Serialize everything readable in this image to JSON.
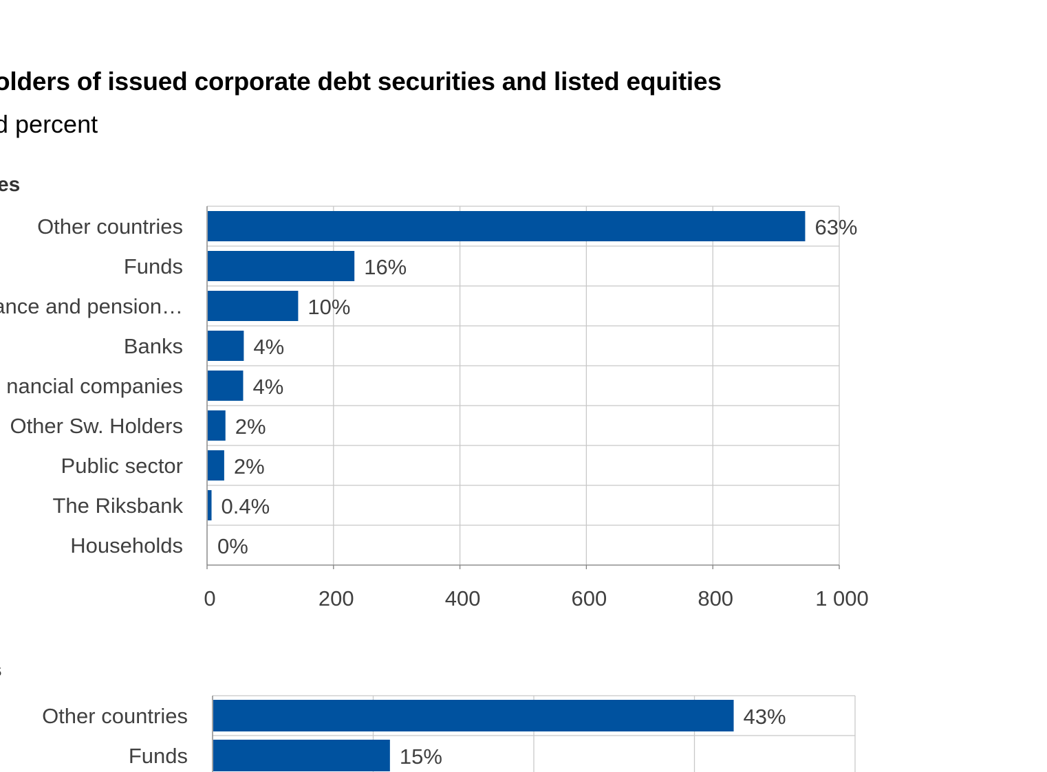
{
  "header": {
    "title": "olders of issued corporate debt securities  and listed equities",
    "subtitle": "d percent"
  },
  "colors": {
    "bar": "#00529F",
    "grid": "#c8c8c8",
    "axis_text": "#404040",
    "label_text": "#404040"
  },
  "chart_data": [
    {
      "type": "bar",
      "orientation": "horizontal",
      "panel_label": "es",
      "categories": [
        "Other countries",
        "Funds",
        "rance and pension…",
        "Banks",
        "nancial companies",
        "Other Sw. Holders",
        "Public sector",
        "The Riksbank",
        "Households"
      ],
      "values": [
        945,
        232,
        143,
        57,
        56,
        28,
        26,
        6,
        0
      ],
      "data_labels": [
        "63%",
        "16%",
        "10%",
        "4%",
        "4%",
        "2%",
        "2%",
        "0.4%",
        "0%"
      ],
      "xlim": [
        0,
        1000
      ],
      "xticks": [
        0,
        200,
        400,
        600,
        800,
        1000
      ],
      "xtick_labels": [
        "0",
        "200",
        "400",
        "600",
        "800",
        "1 000"
      ],
      "grid": true
    },
    {
      "type": "bar",
      "orientation": "horizontal",
      "panel_label": "s",
      "categories": [
        "Other countries",
        "Funds"
      ],
      "values": [
        3240,
        1100
      ],
      "data_labels": [
        "43%",
        "15%"
      ],
      "xlim": [
        0,
        4000
      ],
      "grid": true
    }
  ]
}
